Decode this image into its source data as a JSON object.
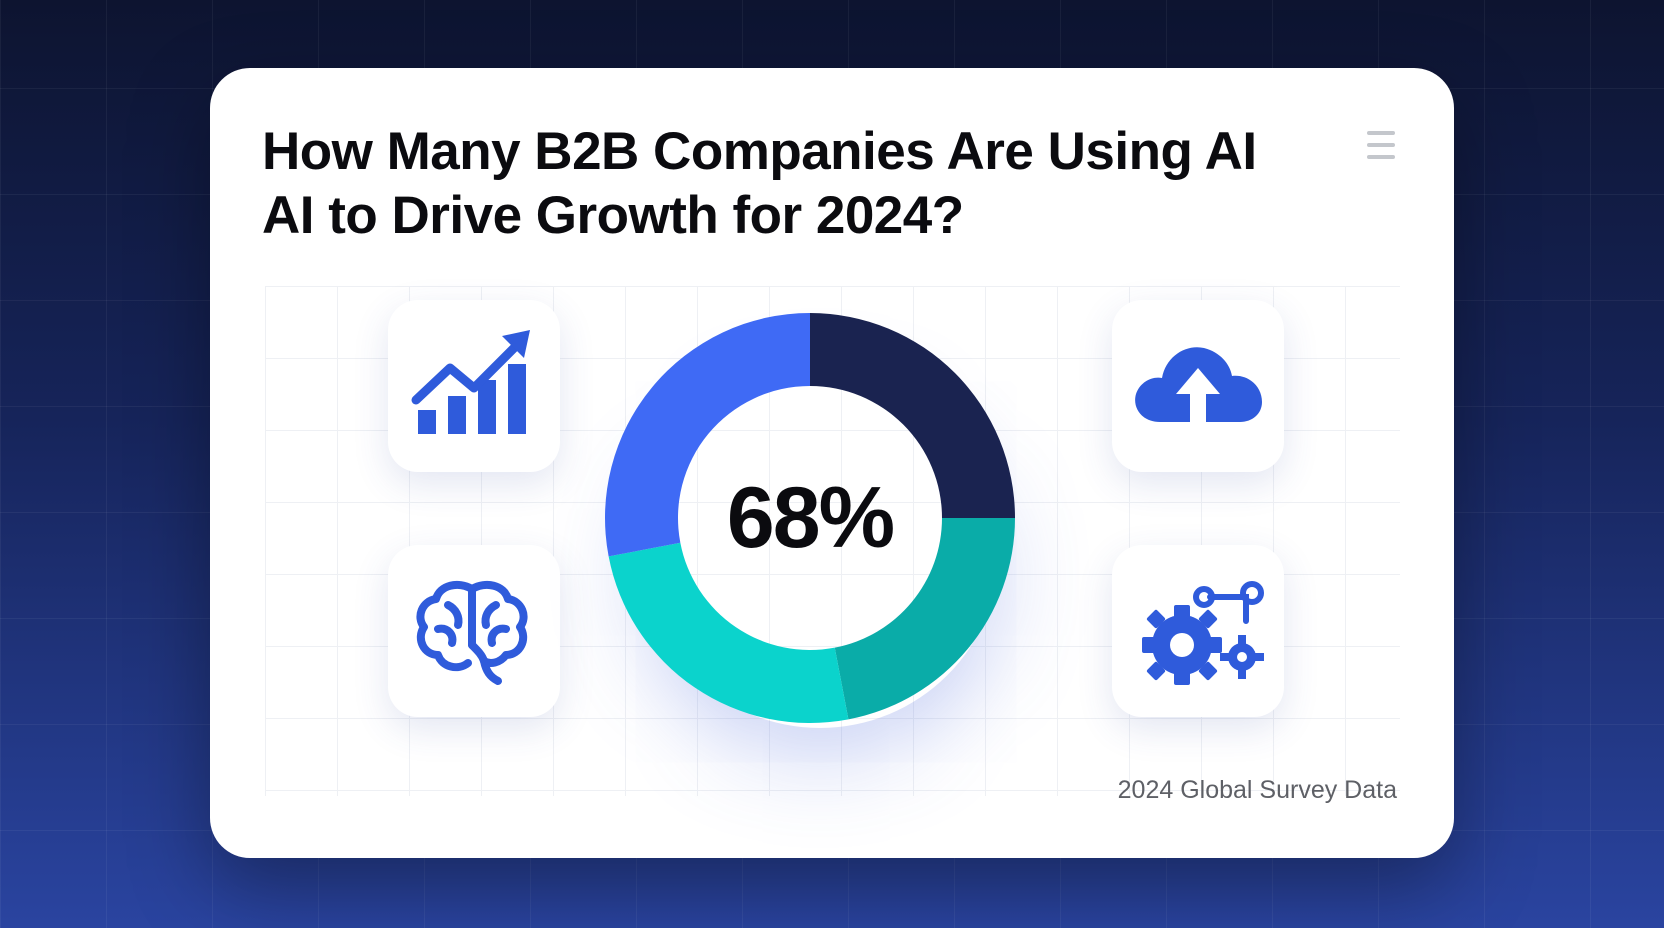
{
  "header": {
    "title_line1": "How Many B2B Companies Are Using AI",
    "title_line2": "AI to Drive Growth for 2024?"
  },
  "footer": {
    "source": "2024 Global Survey Data"
  },
  "icons": {
    "menu": "hamburger-menu-icon",
    "top_left": "growth-chart-icon",
    "bottom_left": "brain-icon",
    "top_right": "cloud-upload-icon",
    "bottom_right": "gear-automation-icon"
  },
  "colors": {
    "accent": "#2f5bdb",
    "segment_navy": "#1a2350",
    "segment_teal": "#0aaca8",
    "segment_cyan": "#0bd3cc",
    "segment_blue": "#3f6af5"
  },
  "chart_data": {
    "type": "pie",
    "title": "",
    "center_label": "68%",
    "slices": [
      {
        "value": 25,
        "color": "#1a2350"
      },
      {
        "value": 22,
        "color": "#0aaca8"
      },
      {
        "value": 25,
        "color": "#0bd3cc"
      },
      {
        "value": 28,
        "color": "#3f6af5"
      }
    ]
  }
}
